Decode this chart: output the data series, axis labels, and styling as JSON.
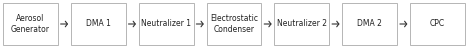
{
  "boxes": [
    {
      "label": "Aerosol\nGenerator"
    },
    {
      "label": "DMA 1"
    },
    {
      "label": "Neutralizer 1"
    },
    {
      "label": "Electrostatic\nCondenser"
    },
    {
      "label": "Neutralizer 2"
    },
    {
      "label": "DMA 2"
    },
    {
      "label": "CPC"
    }
  ],
  "box_color": "#ffffff",
  "box_edge_color": "#aaaaaa",
  "text_color": "#222222",
  "arrow_color": "#333333",
  "background_color": "#ffffff",
  "fontsize": 5.5,
  "figsize": [
    4.68,
    0.48
  ],
  "dpi": 100
}
